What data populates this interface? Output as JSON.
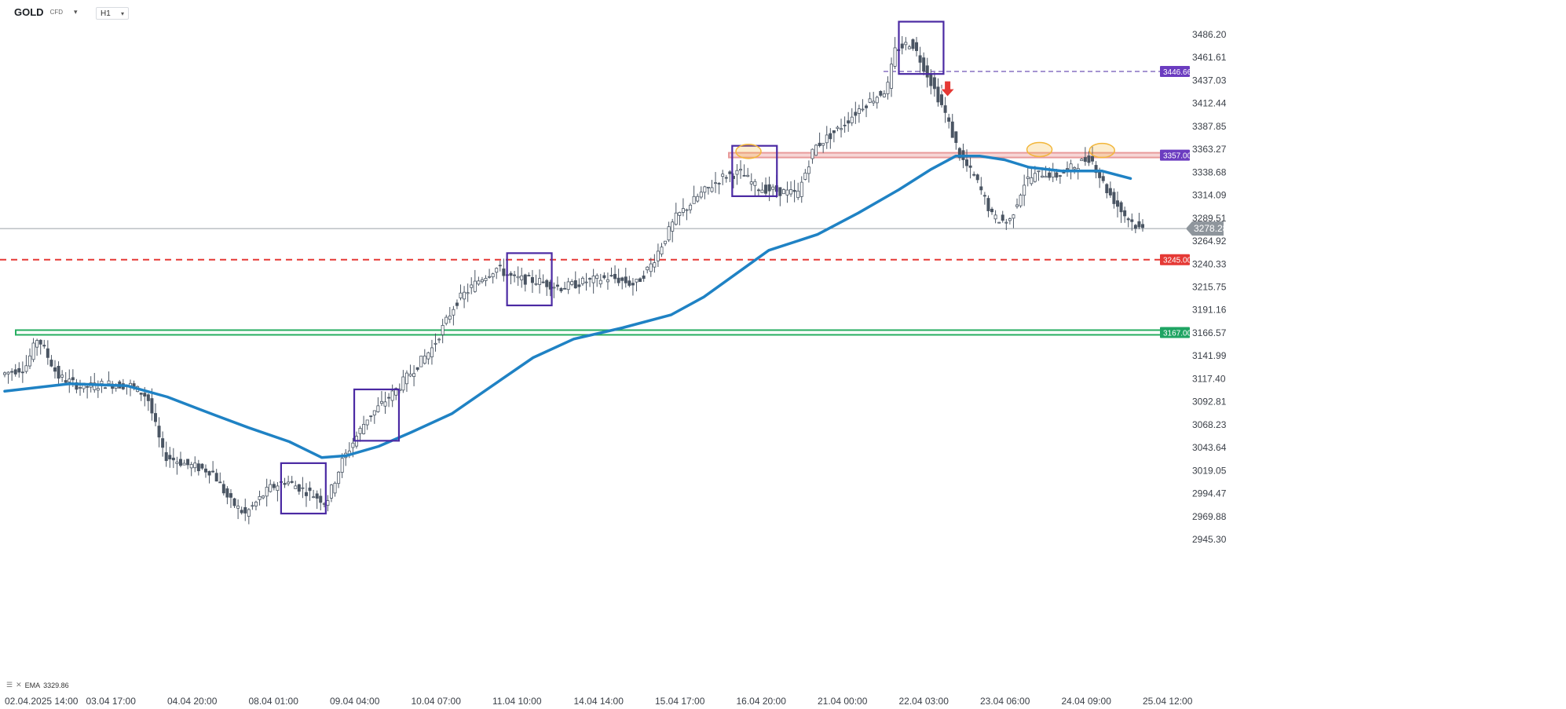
{
  "header": {
    "symbol": "GOLD",
    "symbol_sub": "CFD",
    "timeframe": "H1"
  },
  "indicator": {
    "label": "EMA",
    "value": "3329.86"
  },
  "colors": {
    "candle": "#4a5563",
    "ema": "#1f82c4",
    "box": "#4b2aa3",
    "resistance": "#e89a9a",
    "support": "#27ae60",
    "red_line": "#e53935",
    "label_purple": "#6b3cc0",
    "label_red": "#e53935",
    "label_green": "#1fa463",
    "label_gray": "#8e959c",
    "ellipse": "#f2b63a"
  },
  "chart_data": {
    "type": "candlestick",
    "instrument": "GOLD CFD",
    "timeframe": "H1",
    "y_ticks": [
      "3486.20",
      "3461.61",
      "3437.03",
      "3412.44",
      "3387.85",
      "3363.27",
      "3338.68",
      "3314.09",
      "3289.51",
      "3264.92",
      "3240.33",
      "3215.75",
      "3191.16",
      "3166.57",
      "3141.99",
      "3117.40",
      "3092.81",
      "3068.23",
      "3043.64",
      "3019.05",
      "2994.47",
      "2969.88",
      "2945.30"
    ],
    "ylim": [
      2945.3,
      3486.2
    ],
    "x_ticks": [
      "02.04.2025  14:00",
      "03.04  17:00",
      "04.04  20:00",
      "08.04  01:00",
      "09.04  04:00",
      "10.04  07:00",
      "11.04  10:00",
      "14.04  14:00",
      "15.04  17:00",
      "16.04  20:00",
      "21.04  00:00",
      "22.04  03:00",
      "23.04  06:00",
      "24.04  09:00",
      "25.04  12:00"
    ],
    "x_tick_positions": [
      0,
      1,
      2,
      3,
      4,
      5,
      6,
      7,
      8,
      9,
      10,
      11,
      12,
      13,
      14
    ],
    "price_path": [
      [
        0,
        3122
      ],
      [
        0.3,
        3130
      ],
      [
        0.45,
        3162
      ],
      [
        0.7,
        3120
      ],
      [
        1.0,
        3108
      ],
      [
        1.3,
        3112
      ],
      [
        1.6,
        3110
      ],
      [
        1.8,
        3098
      ],
      [
        2.0,
        3035
      ],
      [
        2.3,
        3025
      ],
      [
        2.6,
        3018
      ],
      [
        2.8,
        2988
      ],
      [
        3.0,
        2972
      ],
      [
        3.3,
        3000
      ],
      [
        3.5,
        3008
      ],
      [
        3.8,
        2995
      ],
      [
        4.0,
        2985
      ],
      [
        4.2,
        3030
      ],
      [
        4.5,
        3075
      ],
      [
        4.8,
        3100
      ],
      [
        5.0,
        3120
      ],
      [
        5.3,
        3150
      ],
      [
        5.6,
        3200
      ],
      [
        5.9,
        3225
      ],
      [
        6.1,
        3236
      ],
      [
        6.3,
        3225
      ],
      [
        6.6,
        3222
      ],
      [
        6.9,
        3215
      ],
      [
        7.2,
        3222
      ],
      [
        7.5,
        3226
      ],
      [
        7.8,
        3218
      ],
      [
        8.0,
        3240
      ],
      [
        8.3,
        3290
      ],
      [
        8.6,
        3315
      ],
      [
        8.9,
        3335
      ],
      [
        9.1,
        3338
      ],
      [
        9.3,
        3322
      ],
      [
        9.6,
        3318
      ],
      [
        9.8,
        3315
      ],
      [
        10.0,
        3365
      ],
      [
        10.3,
        3385
      ],
      [
        10.6,
        3410
      ],
      [
        10.9,
        3428
      ],
      [
        11.0,
        3470
      ],
      [
        11.2,
        3478
      ],
      [
        11.35,
        3452
      ],
      [
        11.6,
        3405
      ],
      [
        11.8,
        3355
      ],
      [
        12.0,
        3330
      ],
      [
        12.2,
        3290
      ],
      [
        12.4,
        3285
      ],
      [
        12.6,
        3330
      ],
      [
        12.8,
        3338
      ],
      [
        13.0,
        3335
      ],
      [
        13.2,
        3345
      ],
      [
        13.4,
        3355
      ],
      [
        13.6,
        3320
      ],
      [
        13.8,
        3295
      ],
      [
        14.0,
        3278
      ]
    ],
    "series": [
      {
        "name": "EMA",
        "values": [
          [
            0,
            3104
          ],
          [
            0.8,
            3112
          ],
          [
            1.5,
            3110
          ],
          [
            2.0,
            3098
          ],
          [
            2.6,
            3078
          ],
          [
            3.0,
            3065
          ],
          [
            3.5,
            3050
          ],
          [
            3.9,
            3033
          ],
          [
            4.2,
            3035
          ],
          [
            4.6,
            3045
          ],
          [
            5.0,
            3060
          ],
          [
            5.5,
            3080
          ],
          [
            6.0,
            3110
          ],
          [
            6.5,
            3140
          ],
          [
            7.0,
            3160
          ],
          [
            7.6,
            3172
          ],
          [
            8.2,
            3186
          ],
          [
            8.6,
            3205
          ],
          [
            9.0,
            3230
          ],
          [
            9.4,
            3255
          ],
          [
            10.0,
            3272
          ],
          [
            10.5,
            3295
          ],
          [
            11.0,
            3320
          ],
          [
            11.4,
            3342
          ],
          [
            11.7,
            3356
          ],
          [
            12.0,
            3356
          ],
          [
            12.3,
            3352
          ],
          [
            12.6,
            3344
          ],
          [
            13.0,
            3340
          ],
          [
            13.5,
            3340
          ],
          [
            13.85,
            3332
          ]
        ]
      }
    ],
    "horizontal_levels": [
      {
        "value": "3446.66",
        "style": "dashed",
        "color": "#4b2aa3"
      },
      {
        "value": "3357.00",
        "style": "band",
        "color": "#e89a9a"
      },
      {
        "value": "3278.28",
        "style": "current",
        "color": "#8e959c"
      },
      {
        "value": "3245.00",
        "style": "dashed",
        "color": "#e53935"
      },
      {
        "value": "3167.00",
        "style": "band",
        "color": "#27ae60"
      }
    ],
    "boxes": [
      {
        "x": [
          3.4,
          3.95
        ],
        "y": [
          2973,
          3027
        ]
      },
      {
        "x": [
          4.3,
          4.85
        ],
        "y": [
          3051,
          3106
        ]
      },
      {
        "x": [
          6.18,
          6.73
        ],
        "y": [
          3196,
          3252
        ]
      },
      {
        "x": [
          8.95,
          9.5
        ],
        "y": [
          3313,
          3367
        ]
      },
      {
        "x": [
          11.0,
          11.55
        ],
        "y": [
          3444,
          3500
        ]
      }
    ],
    "ellipses": [
      {
        "x": 9.15,
        "y": 3361
      },
      {
        "x": 12.73,
        "y": 3363
      },
      {
        "x": 13.5,
        "y": 3362
      }
    ],
    "signal_arrow": {
      "x": 11.6,
      "y": 3428,
      "direction": "down"
    },
    "grid": false
  }
}
